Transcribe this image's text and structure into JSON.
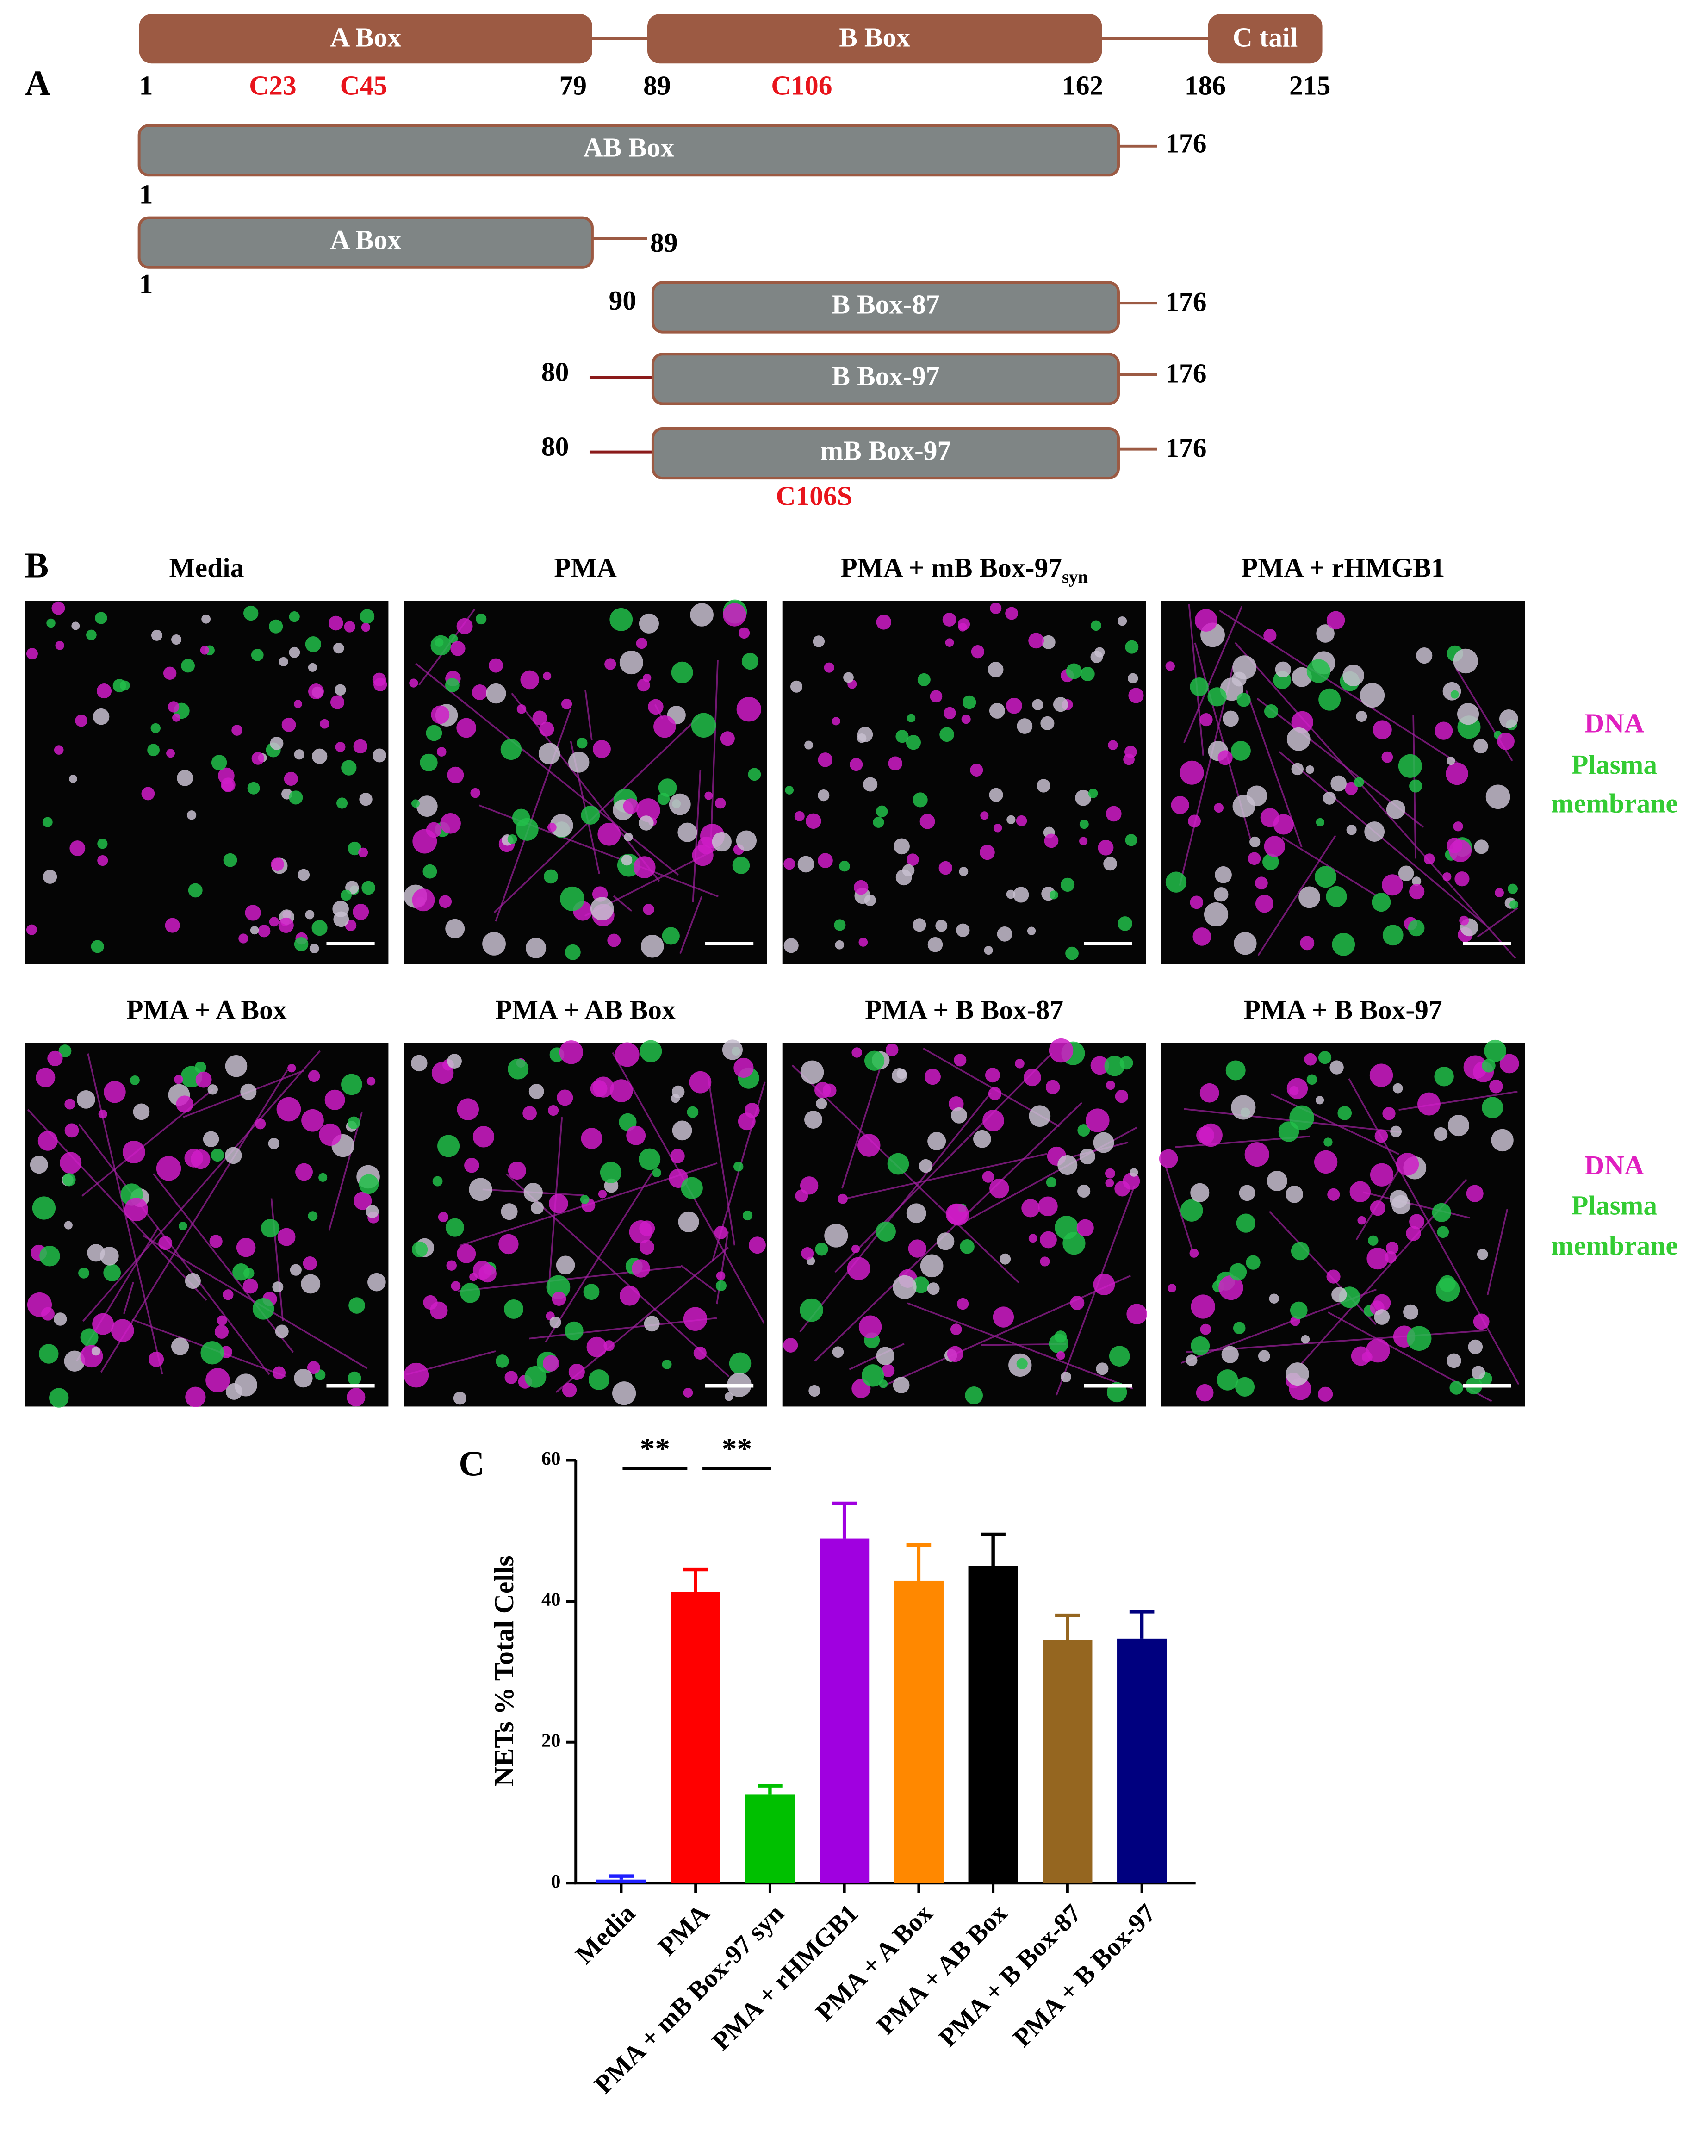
{
  "panel_a": {
    "label": "A",
    "domains": [
      {
        "name": "A Box",
        "start": 1,
        "end": 79
      },
      {
        "name": "B Box",
        "start": 89,
        "end": 162
      },
      {
        "name": "C tail",
        "start": 186,
        "end": 215
      }
    ],
    "cysteines": [
      "C23",
      "C45",
      "C106"
    ],
    "constructs": [
      {
        "name": "AB Box",
        "start": 1,
        "end": 176
      },
      {
        "name": "A Box",
        "start": 1,
        "end": 89
      },
      {
        "name": "B Box-87",
        "start": 90,
        "end": 176
      },
      {
        "name": "B Box-97",
        "start": 80,
        "end": 176
      },
      {
        "name": "mB Box-97",
        "start": 80,
        "end": 176,
        "mutation": "C106S"
      }
    ]
  },
  "panel_b": {
    "label": "B",
    "images": [
      {
        "title": "Media"
      },
      {
        "title": "PMA"
      },
      {
        "title": "PMA + mB Box-97",
        "subscript": "syn"
      },
      {
        "title": "PMA + rHMGB1"
      },
      {
        "title": "PMA + A Box"
      },
      {
        "title": "PMA + AB Box"
      },
      {
        "title": "PMA + B Box-87"
      },
      {
        "title": "PMA + B Box-97"
      }
    ],
    "legend": [
      "DNA",
      "Plasma",
      "membrane"
    ]
  },
  "chart_data": {
    "type": "bar",
    "panel_label": "C",
    "y_label": "NETs % Total Cells",
    "categories": [
      "Media",
      "PMA",
      "PMA + mB Box-97 syn",
      "PMA + rHMGB1",
      "PMA + A Box",
      "PMA + AB Box",
      "PMA + B Box-87",
      "PMA + B Box-97"
    ],
    "values": [
      0.5,
      41.3,
      12.6,
      48.9,
      42.9,
      45.0,
      34.5,
      34.7
    ],
    "errors": [
      0.5,
      3.2,
      1.2,
      5.0,
      5.1,
      4.5,
      3.5,
      3.8
    ],
    "colors": [
      "#1f1fff",
      "#ff0000",
      "#00c000",
      "#a000e0",
      "#ff8800",
      "#000000",
      "#956620",
      "#00007f"
    ],
    "ylim": [
      0,
      60
    ],
    "yticks": [
      0,
      20,
      40,
      60
    ],
    "annotations": [
      "**",
      "**"
    ]
  }
}
